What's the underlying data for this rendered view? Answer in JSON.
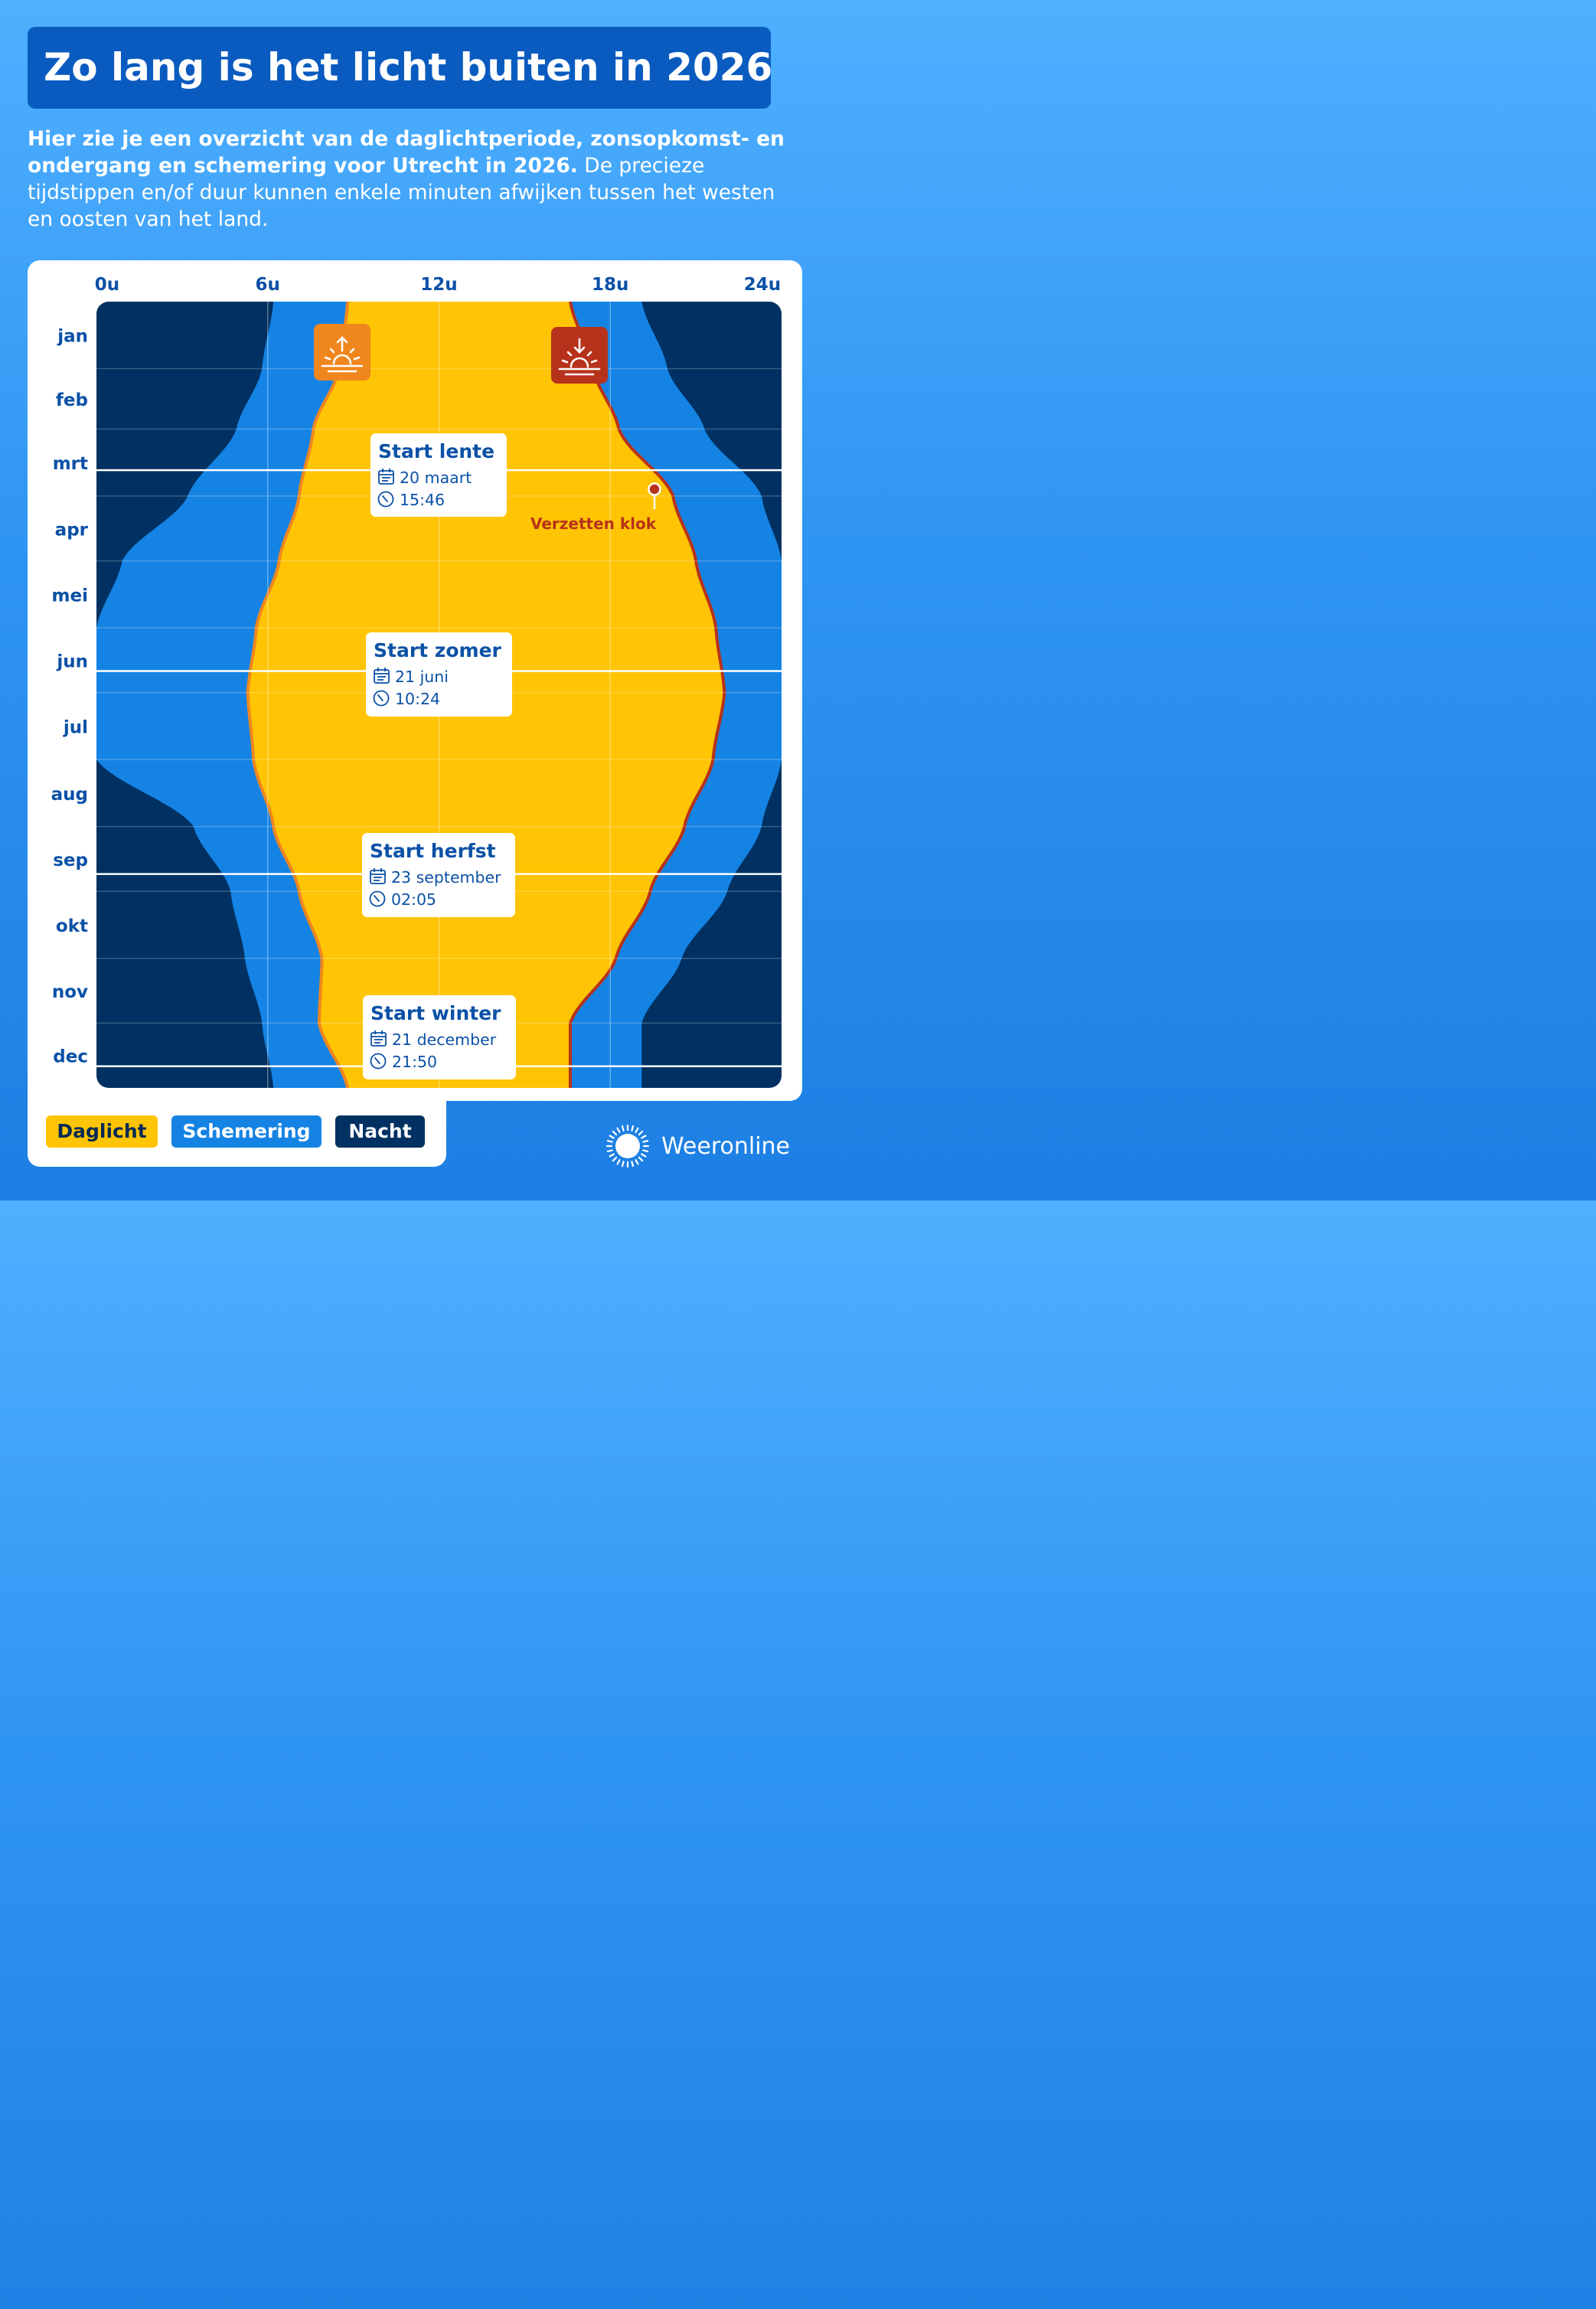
{
  "title": "Zo lang is het licht buiten in 2026",
  "intro": {
    "bold": "Hier zie je een overzicht van de daglichtperiode, zonsopkomst- en ondergang en schemering voor Utrecht in 2026.",
    "normal": "De precieze tijdstippen en/of duur kunnen enkele minuten afwijken tussen het westen en oosten van het land."
  },
  "legend": {
    "daglicht": "Daglicht",
    "schemering": "Schemering",
    "nacht": "Nacht"
  },
  "brand": "Weeronline",
  "annotation": "Verzetten klok",
  "icons": {
    "sunrise": "sunrise-icon",
    "sunset": "sunset-icon",
    "calendar": "calendar-icon",
    "clock": "clock-icon",
    "logo": "weeronline-sun-icon"
  },
  "colors": {
    "daylight": "#ffc403",
    "twilight": "#1583e4",
    "night": "#003162",
    "sunrise_line": "#f0861e",
    "sunset_line": "#b7321a",
    "label_blue": "#0b51a6"
  },
  "seasons": [
    {
      "name": "Start lente",
      "date": "20 maart",
      "time": "15:46"
    },
    {
      "name": "Start zomer",
      "date": "21 juni",
      "time": "10:24"
    },
    {
      "name": "Start herfst",
      "date": "23 september",
      "time": "02:05"
    },
    {
      "name": "Start winter",
      "date": "21 december",
      "time": "21:50"
    }
  ],
  "chart_data": {
    "type": "area",
    "x_axis": {
      "ticks": [
        "0u",
        "6u",
        "12u",
        "18u",
        "24u"
      ],
      "range": [
        0,
        24
      ]
    },
    "months": [
      "jan",
      "feb",
      "mrt",
      "apr",
      "mei",
      "jun",
      "jul",
      "aug",
      "sep",
      "okt",
      "nov",
      "dec"
    ],
    "days": [
      1,
      32,
      60,
      91,
      121,
      152,
      182,
      213,
      244,
      274,
      305,
      335,
      365
    ],
    "dst": {
      "start_day": 88,
      "end_day": 298
    },
    "series": [
      {
        "name": "Daglicht",
        "boundary": "zonsopkomst - zonsondergang",
        "start_hours": [
          8.8,
          8.5,
          7.6,
          7.1,
          6.4,
          5.6,
          5.3,
          5.5,
          6.2,
          7.1,
          7.9,
          7.8,
          8.8
        ],
        "end_hours": [
          16.6,
          17.4,
          18.3,
          20.2,
          21.0,
          21.7,
          22.0,
          21.6,
          20.6,
          19.4,
          18.2,
          16.6,
          16.6
        ]
      },
      {
        "name": "Schemering",
        "boundary": "astronomische schemering",
        "start_hours": [
          6.2,
          5.8,
          4.9,
          3.2,
          0.9,
          0.0,
          0.0,
          0.0,
          3.4,
          4.7,
          5.2,
          5.8,
          6.2
        ],
        "end_hours": [
          19.1,
          20.0,
          21.3,
          23.3,
          24.0,
          24.0,
          24.0,
          24.0,
          23.3,
          22.1,
          20.5,
          19.1,
          19.1
        ]
      }
    ],
    "seasons": [
      {
        "name": "Start lente",
        "day": 79
      },
      {
        "name": "Start zomer",
        "day": 172
      },
      {
        "name": "Start herfst",
        "day": 266
      },
      {
        "name": "Start winter",
        "day": 355
      }
    ],
    "annotations": [
      {
        "text": "Verzetten klok",
        "day": 88,
        "hour": 19.6
      }
    ],
    "legend_position": "bottom-left",
    "grid": true
  }
}
